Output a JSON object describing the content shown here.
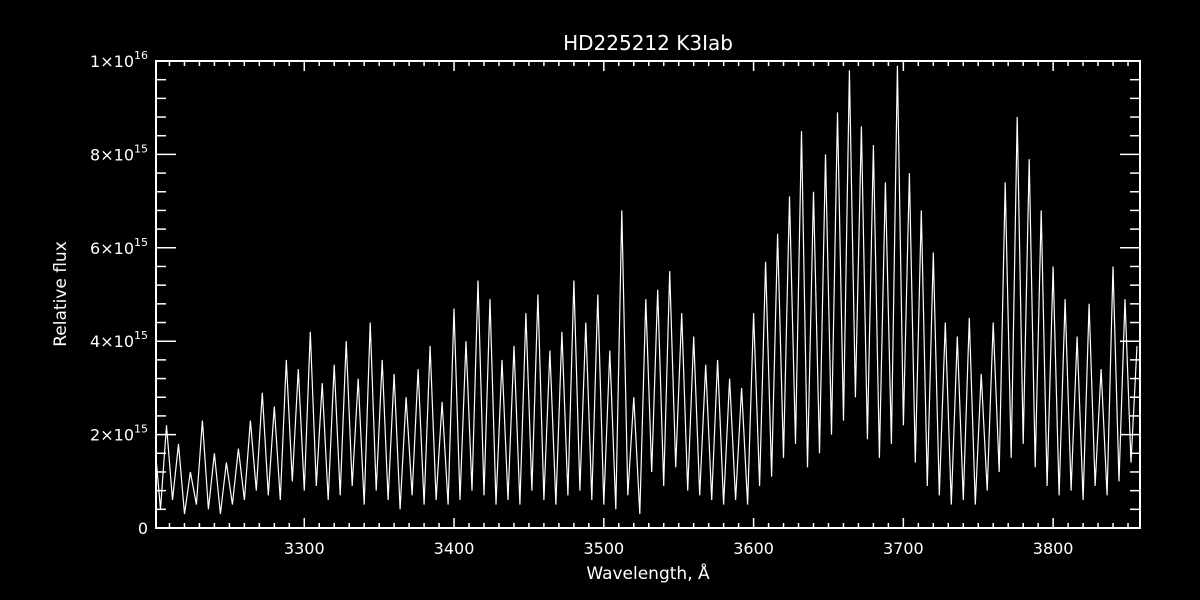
{
  "chart_data": {
    "type": "line",
    "title": "HD225212  K3Iab",
    "xlabel": "Wavelength, Å",
    "ylabel": "Relative flux",
    "xlim": [
      3201,
      3858
    ],
    "ylim": [
      0,
      1e+16
    ],
    "x_ticks": [
      3300,
      3400,
      3500,
      3600,
      3700,
      3800
    ],
    "x_tick_labels": [
      "3300",
      "3400",
      "3500",
      "3600",
      "3700",
      "3800"
    ],
    "x_minor_step": 10,
    "y_ticks": [
      0,
      2000000000000000.0,
      4000000000000000.0,
      6000000000000000.0,
      8000000000000000.0,
      1e+16
    ],
    "y_tick_labels": [
      {
        "mant": "0",
        "exp": ""
      },
      {
        "mant": "2×10",
        "exp": "15"
      },
      {
        "mant": "4×10",
        "exp": "15"
      },
      {
        "mant": "6×10",
        "exp": "15"
      },
      {
        "mant": "8×10",
        "exp": "15"
      },
      {
        "mant": "1×10",
        "exp": "16"
      }
    ],
    "y_minor_step": 400000000000000.0,
    "grid": false,
    "colors": {
      "background": "#000000",
      "foreground": "#ffffff"
    },
    "series": [
      {
        "x_start": 3200,
        "x_step": 4,
        "y_unit": 1000000000000000.0,
        "values": [
          1.5,
          0.4,
          2.2,
          0.6,
          1.8,
          0.3,
          1.2,
          0.5,
          2.3,
          0.4,
          1.6,
          0.3,
          1.4,
          0.5,
          1.7,
          0.6,
          2.3,
          0.8,
          2.9,
          0.7,
          2.6,
          0.6,
          3.6,
          1.0,
          3.4,
          0.8,
          4.2,
          0.9,
          3.1,
          0.6,
          3.5,
          0.7,
          4.0,
          0.9,
          3.2,
          0.5,
          4.4,
          0.8,
          3.6,
          0.6,
          3.3,
          0.4,
          2.8,
          0.7,
          3.4,
          0.5,
          3.9,
          0.6,
          2.7,
          0.5,
          4.7,
          0.6,
          4.0,
          0.8,
          5.3,
          0.7,
          4.9,
          0.5,
          3.6,
          0.6,
          3.9,
          0.5,
          4.6,
          0.8,
          5.0,
          0.6,
          3.8,
          0.5,
          4.2,
          0.7,
          5.3,
          0.8,
          4.4,
          0.6,
          5.0,
          0.5,
          3.8,
          0.4,
          6.8,
          0.7,
          2.8,
          0.3,
          4.9,
          1.2,
          5.1,
          0.9,
          5.5,
          1.3,
          4.6,
          0.8,
          4.1,
          0.7,
          3.5,
          0.6,
          3.6,
          0.5,
          3.2,
          0.6,
          3.0,
          0.5,
          4.6,
          0.9,
          5.7,
          1.1,
          6.3,
          1.5,
          7.1,
          1.8,
          8.5,
          1.3,
          7.2,
          1.6,
          8.0,
          2.0,
          8.9,
          2.3,
          9.8,
          2.8,
          8.6,
          1.9,
          8.2,
          1.5,
          7.4,
          1.8,
          9.9,
          2.2,
          7.6,
          1.4,
          6.8,
          0.9,
          5.9,
          0.7,
          4.4,
          0.5,
          4.1,
          0.6,
          4.5,
          0.5,
          3.3,
          0.8,
          4.4,
          1.2,
          7.4,
          1.5,
          8.8,
          1.8,
          7.9,
          1.3,
          6.8,
          0.9,
          5.6,
          0.7,
          4.9,
          0.8,
          4.1,
          0.6,
          4.8,
          0.9,
          3.4,
          0.7,
          5.6,
          1.0,
          4.9,
          1.4,
          3.9
        ]
      }
    ]
  }
}
